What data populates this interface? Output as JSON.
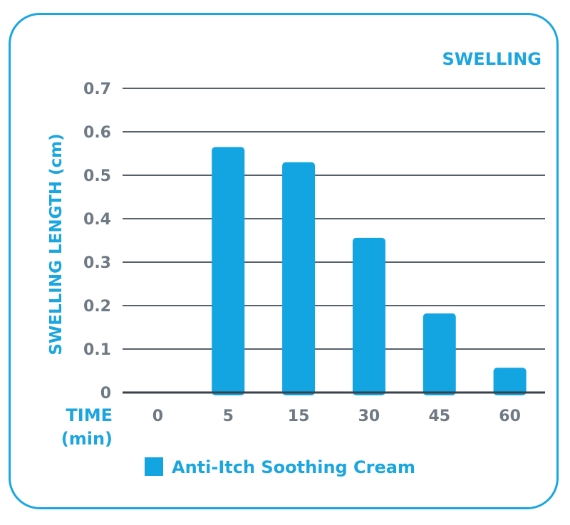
{
  "chart_data": {
    "type": "bar",
    "title": "SWELLING",
    "xlabel": "TIME",
    "xlabel_unit": "(min)",
    "ylabel": "SWELLING LENGTH (cm)",
    "categories": [
      "0",
      "5",
      "15",
      "30",
      "45",
      "60"
    ],
    "series": [
      {
        "name": "Anti-Itch Soothing Cream",
        "values": [
          0,
          0.565,
          0.53,
          0.356,
          0.182,
          0.057
        ]
      }
    ],
    "ylim": [
      0,
      0.7
    ],
    "yticks": [
      "0",
      "0.1",
      "0.2",
      "0.3",
      "0.4",
      "0.5",
      "0.6",
      "0.7"
    ],
    "grid": true,
    "legend_position": "bottom-left"
  },
  "colors": {
    "accent": "#1ba6df",
    "bar": "#13a4e2",
    "tick_text": "#6f7a85",
    "grid": "#57616b",
    "axis": "#39424b"
  }
}
